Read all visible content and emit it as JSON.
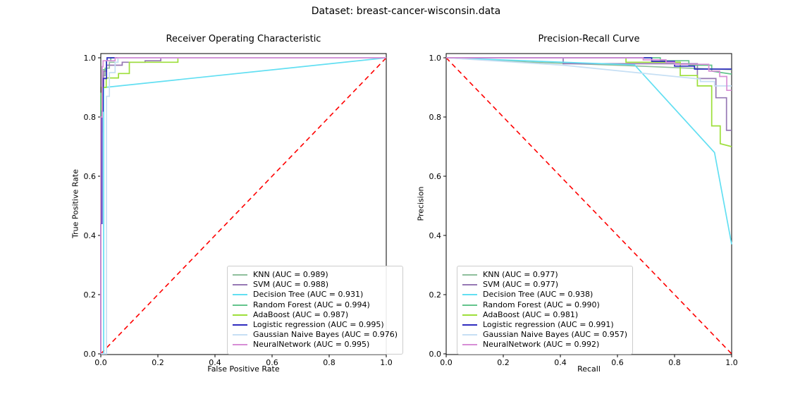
{
  "figure": {
    "title": "Dataset: breast-cancer-wisconsin.data",
    "background": "#ffffff",
    "axis_color": "#000000",
    "text_color": "#000000"
  },
  "chart_data": [
    {
      "id": "roc",
      "type": "line",
      "title": "Receiver Operating Characteristic",
      "xlabel": "False Positive Rate",
      "ylabel": "True Positive Rate",
      "xlim": [
        0.0,
        1.0
      ],
      "ylim": [
        0.0,
        1.0
      ],
      "xticks": {
        "values": [
          0.0,
          0.2,
          0.4,
          0.6,
          0.8,
          1.0
        ],
        "labels": [
          "0.0",
          "0.2",
          "0.4",
          "0.6",
          "0.8",
          "1.0"
        ]
      },
      "yticks": {
        "values": [
          0.0,
          0.2,
          0.4,
          0.6,
          0.8,
          1.0
        ],
        "labels": [
          "0.0",
          "0.2",
          "0.4",
          "0.6",
          "0.8",
          "1.0"
        ]
      },
      "grid": false,
      "legend_position": "lower right",
      "diagonal": {
        "color": "#ff0000",
        "style": "dashed",
        "points": [
          [
            0,
            0
          ],
          [
            1,
            1
          ]
        ]
      },
      "series": [
        {
          "name": "KNN",
          "slug": "knn",
          "auc": 0.989,
          "label": "KNN (AUC = 0.989)",
          "color": "#8fbf9c",
          "points": [
            [
              0,
              0
            ],
            [
              0,
              0.87
            ],
            [
              0.005,
              0.87
            ],
            [
              0.005,
              0.94
            ],
            [
              0.015,
              0.94
            ],
            [
              0.015,
              0.965
            ],
            [
              0.03,
              0.965
            ],
            [
              0.03,
              0.985
            ],
            [
              0.06,
              0.985
            ],
            [
              0.06,
              1
            ],
            [
              1,
              1
            ]
          ]
        },
        {
          "name": "SVM",
          "slug": "svm",
          "auc": 0.988,
          "label": "SVM (AUC = 0.988)",
          "color": "#9678b4",
          "points": [
            [
              0,
              0
            ],
            [
              0,
              0.75
            ],
            [
              0.004,
              0.75
            ],
            [
              0.004,
              0.9
            ],
            [
              0.01,
              0.9
            ],
            [
              0.01,
              0.955
            ],
            [
              0.02,
              0.955
            ],
            [
              0.02,
              0.975
            ],
            [
              0.075,
              0.975
            ],
            [
              0.075,
              0.985
            ],
            [
              0.155,
              0.985
            ],
            [
              0.155,
              0.99
            ],
            [
              0.21,
              0.99
            ],
            [
              0.21,
              1
            ],
            [
              1,
              1
            ]
          ]
        },
        {
          "name": "Decision Tree",
          "slug": "decision-tree",
          "auc": 0.931,
          "label": "Decision Tree (AUC = 0.931)",
          "color": "#62dff2",
          "points": [
            [
              0,
              0
            ],
            [
              0.01,
              0
            ],
            [
              0.01,
              0.9
            ],
            [
              0.015,
              0.9
            ],
            [
              1,
              1
            ]
          ]
        },
        {
          "name": "Random Forest",
          "slug": "random-forest",
          "auc": 0.994,
          "label": "Random Forest (AUC = 0.994)",
          "color": "#63c48c",
          "points": [
            [
              0,
              0
            ],
            [
              0,
              0.88
            ],
            [
              0.005,
              0.88
            ],
            [
              0.005,
              0.96
            ],
            [
              0.02,
              0.96
            ],
            [
              0.02,
              0.99
            ],
            [
              0.035,
              0.99
            ],
            [
              0.035,
              1
            ],
            [
              1,
              1
            ]
          ]
        },
        {
          "name": "AdaBoost",
          "slug": "adaboost",
          "auc": 0.987,
          "label": "AdaBoost (AUC = 0.987)",
          "color": "#9ddf3a",
          "points": [
            [
              0,
              0
            ],
            [
              0,
              0.79
            ],
            [
              0.004,
              0.79
            ],
            [
              0.004,
              0.9
            ],
            [
              0.019,
              0.9
            ],
            [
              0.019,
              0.932
            ],
            [
              0.062,
              0.932
            ],
            [
              0.062,
              0.947
            ],
            [
              0.1,
              0.947
            ],
            [
              0.1,
              0.985
            ],
            [
              0.27,
              0.985
            ],
            [
              0.27,
              1
            ],
            [
              1,
              1
            ]
          ]
        },
        {
          "name": "Logistic regression",
          "slug": "logistic-regression",
          "auc": 0.995,
          "label": "Logistic regression (AUC = 0.995)",
          "color": "#2f2cbf",
          "points": [
            [
              0,
              0
            ],
            [
              0,
              0.44
            ],
            [
              0.004,
              0.44
            ],
            [
              0.004,
              0.82
            ],
            [
              0.008,
              0.82
            ],
            [
              0.008,
              0.93
            ],
            [
              0.02,
              0.93
            ],
            [
              0.02,
              0.99
            ],
            [
              0.022,
              0.99
            ],
            [
              0.022,
              1
            ],
            [
              1,
              1
            ]
          ]
        },
        {
          "name": "Gaussian Naive Bayes",
          "slug": "gaussian-naive-bayes",
          "auc": 0.976,
          "label": "Gaussian Naive Bayes (AUC = 0.976)",
          "color": "#c6dff4",
          "points": [
            [
              0,
              0
            ],
            [
              0.02,
              0
            ],
            [
              0.02,
              0.87
            ],
            [
              0.03,
              0.87
            ],
            [
              0.03,
              0.95
            ],
            [
              0.05,
              0.95
            ],
            [
              0.05,
              0.985
            ],
            [
              0.06,
              0.985
            ],
            [
              0.06,
              1
            ],
            [
              1,
              1
            ]
          ]
        },
        {
          "name": "NeuralNetwork",
          "slug": "neuralnetwork",
          "auc": 0.995,
          "label": "NeuralNetwork (AUC = 0.995)",
          "color": "#d78ed6",
          "points": [
            [
              0,
              0
            ],
            [
              0,
              0.8
            ],
            [
              0.005,
              0.8
            ],
            [
              0.005,
              0.97
            ],
            [
              0.008,
              0.97
            ],
            [
              0.008,
              0.99
            ],
            [
              0.05,
              0.99
            ],
            [
              0.05,
              1
            ],
            [
              1,
              1
            ]
          ]
        }
      ]
    },
    {
      "id": "pr",
      "type": "line",
      "title": "Precision-Recall Curve",
      "xlabel": "Recall",
      "ylabel": "Precision",
      "xlim": [
        0.0,
        1.0
      ],
      "ylim": [
        0.0,
        1.0
      ],
      "xticks": {
        "values": [
          0.0,
          0.2,
          0.4,
          0.6,
          0.8,
          1.0
        ],
        "labels": [
          "0.0",
          "0.2",
          "0.4",
          "0.6",
          "0.8",
          "1.0"
        ]
      },
      "yticks": {
        "values": [
          0.0,
          0.2,
          0.4,
          0.6,
          0.8,
          1.0
        ],
        "labels": [
          "0.0",
          "0.2",
          "0.4",
          "0.6",
          "0.8",
          "1.0"
        ]
      },
      "grid": false,
      "legend_position": "lower left",
      "diagonal": {
        "color": "#ff0000",
        "style": "dashed",
        "points": [
          [
            0,
            1
          ],
          [
            1,
            0
          ]
        ]
      },
      "series": [
        {
          "name": "KNN",
          "slug": "knn",
          "auc": 0.977,
          "label": "KNN (AUC = 0.977)",
          "color": "#8fbf9c",
          "points": [
            [
              0,
              1
            ],
            [
              0.3,
              0.985
            ],
            [
              0.6,
              0.975
            ],
            [
              0.85,
              0.965
            ],
            [
              1,
              0.96
            ]
          ]
        },
        {
          "name": "SVM",
          "slug": "svm",
          "auc": 0.977,
          "label": "SVM (AUC = 0.977)",
          "color": "#9678b4",
          "points": [
            [
              0,
              1
            ],
            [
              0.41,
              1
            ],
            [
              0.41,
              0.98
            ],
            [
              0.88,
              0.98
            ],
            [
              0.88,
              0.93
            ],
            [
              0.945,
              0.93
            ],
            [
              0.945,
              0.865
            ],
            [
              0.982,
              0.865
            ],
            [
              0.982,
              0.755
            ],
            [
              1,
              0.755
            ]
          ]
        },
        {
          "name": "Decision Tree",
          "slug": "decision-tree",
          "auc": 0.938,
          "label": "Decision Tree (AUC = 0.938)",
          "color": "#62dff2",
          "points": [
            [
              0,
              1
            ],
            [
              0.66,
              0.976
            ],
            [
              0.94,
              0.68
            ],
            [
              1,
              0.37
            ]
          ]
        },
        {
          "name": "Random Forest",
          "slug": "random-forest",
          "auc": 0.99,
          "label": "Random Forest (AUC = 0.990)",
          "color": "#63c48c",
          "points": [
            [
              0,
              1
            ],
            [
              0.75,
              1
            ],
            [
              0.75,
              0.99
            ],
            [
              0.85,
              0.99
            ],
            [
              0.85,
              0.975
            ],
            [
              0.93,
              0.975
            ],
            [
              0.93,
              0.955
            ],
            [
              1,
              0.945
            ]
          ]
        },
        {
          "name": "AdaBoost",
          "slug": "adaboost",
          "auc": 0.981,
          "label": "AdaBoost (AUC = 0.981)",
          "color": "#9ddf3a",
          "points": [
            [
              0,
              1
            ],
            [
              0.63,
              1
            ],
            [
              0.63,
              0.985
            ],
            [
              0.82,
              0.985
            ],
            [
              0.82,
              0.94
            ],
            [
              0.88,
              0.94
            ],
            [
              0.88,
              0.905
            ],
            [
              0.93,
              0.905
            ],
            [
              0.93,
              0.77
            ],
            [
              0.96,
              0.77
            ],
            [
              0.96,
              0.71
            ],
            [
              1,
              0.7
            ]
          ]
        },
        {
          "name": "Logistic regression",
          "slug": "logistic-regression",
          "auc": 0.991,
          "label": "Logistic regression (AUC = 0.991)",
          "color": "#2f2cbf",
          "points": [
            [
              0,
              1
            ],
            [
              0.72,
              1
            ],
            [
              0.72,
              0.988
            ],
            [
              0.8,
              0.988
            ],
            [
              0.8,
              0.972
            ],
            [
              0.87,
              0.972
            ],
            [
              0.87,
              0.962
            ],
            [
              1,
              0.962
            ]
          ]
        },
        {
          "name": "Gaussian Naive Bayes",
          "slug": "gaussian-naive-bayes",
          "auc": 0.957,
          "label": "Gaussian Naive Bayes (AUC = 0.957)",
          "color": "#c6dff4",
          "points": [
            [
              0,
              1
            ],
            [
              0.41,
              0.975
            ],
            [
              0.89,
              0.928
            ],
            [
              0.89,
              0.92
            ],
            [
              0.94,
              0.92
            ],
            [
              0.94,
              0.905
            ],
            [
              1,
              0.905
            ]
          ]
        },
        {
          "name": "NeuralNetwork",
          "slug": "neuralnetwork",
          "auc": 0.992,
          "label": "NeuralNetwork (AUC = 0.992)",
          "color": "#d78ed6",
          "points": [
            [
              0,
              1
            ],
            [
              0.69,
              1
            ],
            [
              0.69,
              0.993
            ],
            [
              0.77,
              0.993
            ],
            [
              0.77,
              0.985
            ],
            [
              0.8,
              0.985
            ],
            [
              0.8,
              0.978
            ],
            [
              0.92,
              0.978
            ],
            [
              0.92,
              0.955
            ],
            [
              0.958,
              0.955
            ],
            [
              0.958,
              0.937
            ],
            [
              0.983,
              0.937
            ],
            [
              0.983,
              0.89
            ],
            [
              1,
              0.89
            ]
          ]
        }
      ]
    }
  ]
}
